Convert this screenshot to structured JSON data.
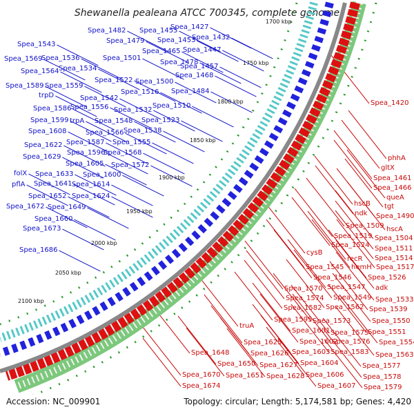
{
  "title": "Shewanella pealeana ATCC 700345, complete genome",
  "footer": {
    "accession": "Accession: NC_009901",
    "summary": "Topology: circular; Length: 5,174,581 bp; Genes: 4,420"
  },
  "kbp_marks": [
    "1700 kbp",
    "1750 kbp",
    "1800 kbp",
    "1850 kbp",
    "1900 kbp",
    "1950 kbp",
    "2000 kbp",
    "2050 kbp",
    "2100 kbp"
  ],
  "colors": {
    "forward": "#2222dd",
    "reverse": "#dd1111",
    "blue_text": "#1010c8",
    "red_text": "#c80808",
    "backbone": "#888888"
  },
  "blue_labels": [
    "Spea_1427",
    "Spea_1432",
    "Spea_1447",
    "Spea_1455",
    "Spea_1453",
    "Spea_1482",
    "Spea_1479",
    "Spea_1465",
    "Spea_1457",
    "Spea_1478",
    "Spea_1468",
    "Spea_1543",
    "Spea_1569",
    "Spea_1536",
    "Spea_1501",
    "Spea_1564",
    "Spea_1534",
    "Spea_1500",
    "Spea_1484",
    "Spea_1522",
    "Spea_1589",
    "Spea_1559",
    "Spea_1516",
    "trpD",
    "Spea_1542",
    "Spea_1510",
    "Spea_1586",
    "Spea_1556",
    "Spea_1532",
    "Spea_1599",
    "trpA",
    "Spea_1548",
    "Spea_1523",
    "Spea_1608",
    "Spea_1566",
    "Spea_1538",
    "Spea_1587",
    "Spea_1555",
    "Spea_1622",
    "Spea_1596",
    "Spea_1568",
    "Spea_1629",
    "Spea_1605",
    "Spea_1572",
    "folX",
    "Spea_1633",
    "Spea_1600",
    "pflA",
    "Spea_1641",
    "Spea_1614",
    "Spea_1652",
    "Spea_1624",
    "Spea_1672",
    "Spea_1649",
    "Spea_1660",
    "Spea_1673",
    "Spea_1686"
  ],
  "red_labels": [
    "Spea_1420",
    "phhA",
    "gltX",
    "Spea_1461",
    "Spea_1466",
    "queA",
    "hscB",
    "tgt",
    "ndk",
    "Spea_1490",
    "Spea_1509",
    "hscA",
    "Spea_1519",
    "Spea_1504",
    "Spea_1524",
    "Spea_1511",
    "cysB",
    "Spea_1514",
    "recR",
    "Spea_1545",
    "hemH",
    "Spea_1517",
    "Spea_1546",
    "Spea_1526",
    "Spea_1570",
    "Spea_1547",
    "adk",
    "Spea_1574",
    "Spea_1549",
    "Spea_1533",
    "Spea_1582",
    "Spea_1562",
    "Spea_1539",
    "Spea_1595",
    "Spea_1573",
    "Spea_1550",
    "truA",
    "Spea_1601",
    "Spea_1575",
    "Spea_1551",
    "Spea_1625",
    "Spea_1602",
    "Spea_1576",
    "Spea_1554",
    "Spea_1648",
    "Spea_1626",
    "Spea_1603",
    "Spea_1583",
    "Spea_1563",
    "Spea_1650",
    "Spea_1627",
    "Spea_1604",
    "Spea_1577",
    "Spea_1651",
    "Spea_1628",
    "Spea_1606",
    "Spea_1578",
    "Spea_1670",
    "Spea_1674",
    "Spea_1607",
    "Spea_1579"
  ]
}
